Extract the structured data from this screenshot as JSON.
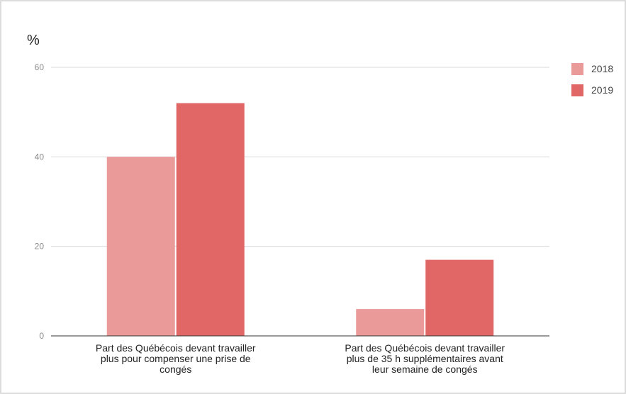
{
  "chart_data": {
    "type": "bar",
    "ylabel": "%",
    "ylim": [
      0,
      60
    ],
    "yticks": [
      "0",
      "20",
      "40",
      "60"
    ],
    "grid": true,
    "legend_position": "right",
    "categories": [
      [
        "Part des Québécois devant travailler",
        "plus pour compenser une prise de",
        "congés"
      ],
      [
        "Part des Québécois devant travailler",
        "plus de 35 h supplémentaires avant",
        "leur semaine de congés"
      ]
    ],
    "series": [
      {
        "name": "2018",
        "color": "#e99a99",
        "values": [
          40,
          6
        ]
      },
      {
        "name": "2019",
        "color": "#e06766",
        "values": [
          52,
          17
        ]
      }
    ]
  }
}
